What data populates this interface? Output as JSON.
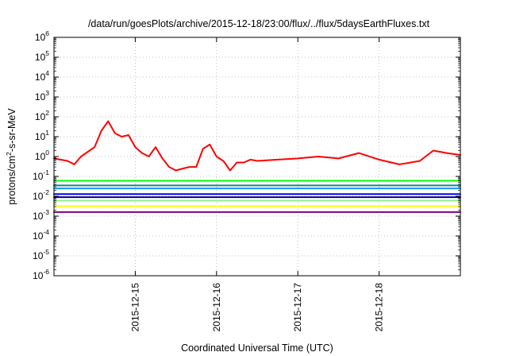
{
  "chart_data": {
    "type": "line",
    "title": "/data/run/goesPlots/archive/2015-12-18/23:00/flux/../flux/5daysEarthFluxes.txt",
    "xlabel": "Coordinated Universal Time (UTC)",
    "ylabel": {
      "base": "protons/cm",
      "sup": "2",
      "rest": "-s-sr-MeV"
    },
    "yscale": "log",
    "ylim": [
      -6,
      6
    ],
    "y_ticks": [
      {
        "mant": "10",
        "exp": "6"
      },
      {
        "mant": "10",
        "exp": "5"
      },
      {
        "mant": "10",
        "exp": "4"
      },
      {
        "mant": "10",
        "exp": "3"
      },
      {
        "mant": "10",
        "exp": "2"
      },
      {
        "mant": "10",
        "exp": "1"
      },
      {
        "mant": "10",
        "exp": "0"
      },
      {
        "mant": "10",
        "exp": "-1"
      },
      {
        "mant": "10",
        "exp": "-2"
      },
      {
        "mant": "10",
        "exp": "-3"
      },
      {
        "mant": "10",
        "exp": "-4"
      },
      {
        "mant": "10",
        "exp": "-5"
      },
      {
        "mant": "10",
        "exp": "-6"
      }
    ],
    "xlim": [
      "2015-12-14T00:00",
      "2015-12-18T23:59"
    ],
    "x_ticks": [
      "2015-12-15",
      "2015-12-16",
      "2015-12-17",
      "2015-12-18"
    ],
    "grid": true,
    "series": [
      {
        "color": "#ff0000",
        "x": [
          "2015-12-14T00:00",
          "2015-12-14T04:00",
          "2015-12-14T06:00",
          "2015-12-14T08:00",
          "2015-12-14T12:00",
          "2015-12-14T14:00",
          "2015-12-14T16:00",
          "2015-12-14T18:00",
          "2015-12-14T20:00",
          "2015-12-14T22:00",
          "2015-12-15T00:00",
          "2015-12-15T02:00",
          "2015-12-15T04:00",
          "2015-12-15T06:00",
          "2015-12-15T08:00",
          "2015-12-15T10:00",
          "2015-12-15T12:00",
          "2015-12-15T14:00",
          "2015-12-15T16:00",
          "2015-12-15T18:00",
          "2015-12-15T20:00",
          "2015-12-15T22:00",
          "2015-12-16T00:00",
          "2015-12-16T02:00",
          "2015-12-16T04:00",
          "2015-12-16T06:00",
          "2015-12-16T08:00",
          "2015-12-16T10:00",
          "2015-12-16T12:00",
          "2015-12-16T18:00",
          "2015-12-17T00:00",
          "2015-12-17T06:00",
          "2015-12-17T12:00",
          "2015-12-17T18:00",
          "2015-12-18T00:00",
          "2015-12-18T06:00",
          "2015-12-18T12:00",
          "2015-12-18T16:00",
          "2015-12-18T20:00",
          "2015-12-18T23:59"
        ],
        "y": [
          0.8,
          0.6,
          0.4,
          1.0,
          3.0,
          20,
          60,
          15,
          10,
          12,
          3,
          1.5,
          1.0,
          3,
          0.8,
          0.3,
          0.2,
          0.25,
          0.3,
          0.3,
          2.5,
          4,
          1.0,
          0.6,
          0.2,
          0.5,
          0.5,
          0.7,
          0.6,
          0.7,
          0.8,
          1.0,
          0.8,
          1.5,
          0.7,
          0.4,
          0.6,
          2.0,
          1.5,
          1.2
        ]
      },
      {
        "color": "#00ff00",
        "x": [
          "2015-12-14T00:00",
          "2015-12-18T23:59"
        ],
        "y": [
          0.06,
          0.06
        ]
      },
      {
        "color": "#008b8b",
        "x": [
          "2015-12-14T00:00",
          "2015-12-18T23:59"
        ],
        "y": [
          0.035,
          0.035
        ]
      },
      {
        "color": "#1e90ff",
        "x": [
          "2015-12-14T00:00",
          "2015-12-18T23:59"
        ],
        "y": [
          0.025,
          0.025
        ]
      },
      {
        "color": "#0000ff",
        "x": [
          "2015-12-14T00:00",
          "2015-12-18T23:59"
        ],
        "y": [
          0.013,
          0.013
        ]
      },
      {
        "color": "#00008b",
        "x": [
          "2015-12-14T00:00",
          "2015-12-18T23:59"
        ],
        "y": [
          0.009,
          0.009
        ]
      },
      {
        "color": "#90ee90",
        "x": [
          "2015-12-14T00:00",
          "2015-12-18T23:59"
        ],
        "y": [
          0.006,
          0.006
        ]
      },
      {
        "color": "#ffff00",
        "x": [
          "2015-12-14T00:00",
          "2015-12-18T23:59"
        ],
        "y": [
          0.0032,
          0.0032
        ]
      },
      {
        "color": "#800080",
        "x": [
          "2015-12-14T00:00",
          "2015-12-18T23:59"
        ],
        "y": [
          0.0016,
          0.0016
        ]
      }
    ]
  }
}
